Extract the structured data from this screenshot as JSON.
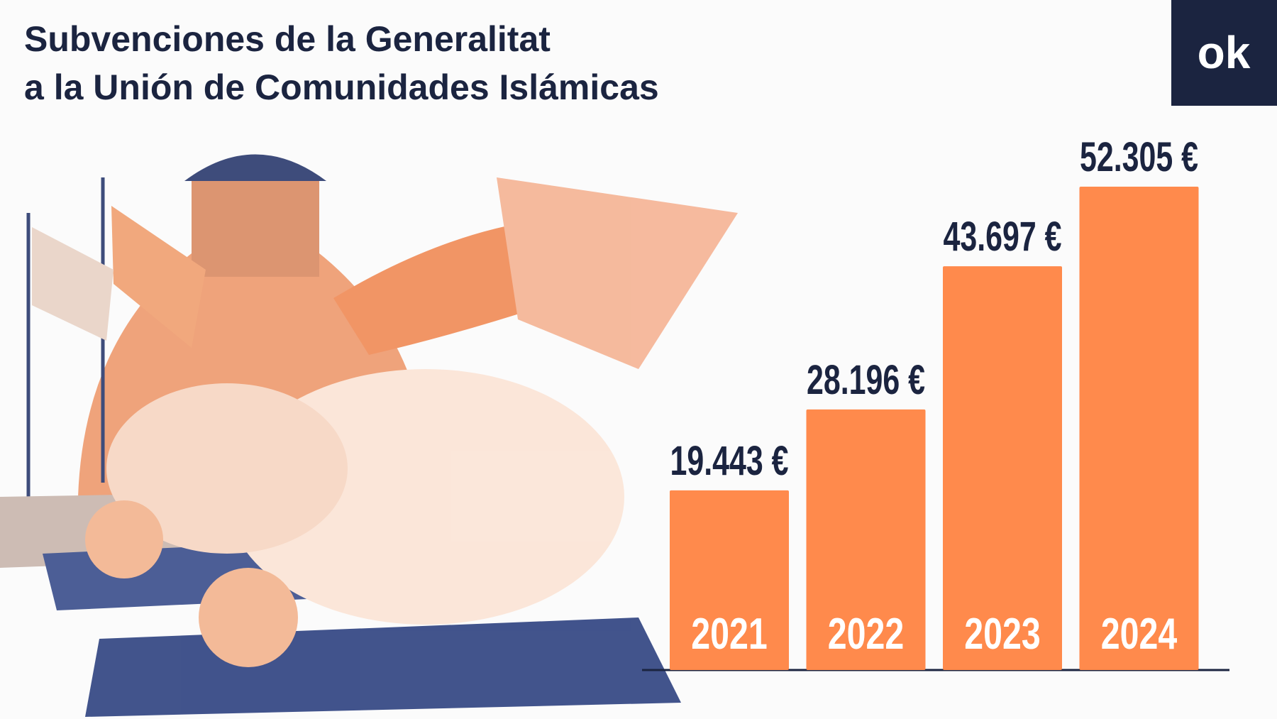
{
  "chart_data": {
    "type": "bar",
    "title": [
      "Subvenciones de la Generalitat",
      "a la Unión de Comunidades Islámicas"
    ],
    "logo": "ok",
    "categories": [
      "2021",
      "2022",
      "2023",
      "2024"
    ],
    "values": [
      19443,
      28196,
      43697,
      52305
    ],
    "value_labels": [
      "19.443 €",
      "28.196 €",
      "43.697 €",
      "52.305 €"
    ],
    "color": "#ff8a4c"
  }
}
